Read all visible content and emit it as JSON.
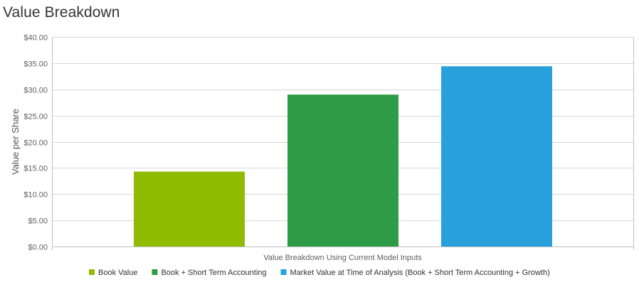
{
  "page": {
    "title": "Value Breakdown"
  },
  "chart_data": {
    "type": "bar",
    "title": "Value Breakdown",
    "xlabel": "Value Breakdown Using Current Model Inputs",
    "ylabel": "Value per Share",
    "ylim": [
      0,
      40
    ],
    "yticks": [
      0,
      5,
      10,
      15,
      20,
      25,
      30,
      35,
      40
    ],
    "ytick_labels": [
      "$0.00",
      "$5.00",
      "$10.00",
      "$15.00",
      "$20.00",
      "$25.00",
      "$30.00",
      "$35.00",
      "$40.00"
    ],
    "grid": true,
    "legend_position": "bottom-center",
    "series": [
      {
        "name": "Book Value",
        "value": 14.3,
        "color": "#8fbc00"
      },
      {
        "name": "Book + Short Term Accounting",
        "value": 29.0,
        "color": "#2e9c47"
      },
      {
        "name": "Market Value at Time of Analysis (Book + Short Term Accounting + Growth)",
        "value": 34.4,
        "color": "#27a0dc"
      }
    ]
  }
}
